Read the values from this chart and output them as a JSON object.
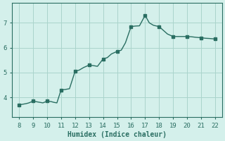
{
  "x": [
    8,
    9,
    10,
    11,
    12,
    13,
    14,
    15,
    16,
    17,
    18,
    19,
    20,
    21,
    22
  ],
  "y": [
    3.7,
    3.85,
    3.85,
    4.3,
    5.05,
    5.3,
    5.55,
    5.85,
    6.85,
    7.3,
    6.85,
    6.45,
    6.45,
    6.4,
    6.35
  ],
  "x_dense": [
    8,
    8.2,
    8.5,
    8.7,
    9,
    9.3,
    9.5,
    9.7,
    10,
    10.3,
    10.5,
    10.7,
    11,
    11.3,
    11.6,
    12,
    12.3,
    12.6,
    13,
    13.3,
    13.6,
    14,
    14.3,
    14.6,
    15,
    15.3,
    15.6,
    16,
    16.3,
    16.6,
    17,
    17.3,
    17.6,
    18,
    18.3,
    18.6,
    19,
    19.3,
    19.6,
    20,
    20.3,
    20.6,
    21,
    21.3,
    21.6,
    22
  ],
  "y_dense": [
    3.7,
    3.72,
    3.75,
    3.78,
    3.85,
    3.82,
    3.8,
    3.78,
    3.85,
    3.83,
    3.8,
    3.78,
    4.3,
    4.32,
    4.35,
    5.05,
    5.1,
    5.2,
    5.3,
    5.28,
    5.25,
    5.55,
    5.6,
    5.75,
    5.85,
    5.9,
    6.2,
    6.85,
    6.87,
    6.88,
    7.3,
    7.0,
    6.9,
    6.85,
    6.7,
    6.55,
    6.45,
    6.45,
    6.45,
    6.45,
    6.44,
    6.42,
    6.4,
    6.38,
    6.37,
    6.35
  ],
  "xlabel": "Humidex (Indice chaleur)",
  "xlim": [
    7.5,
    22.5
  ],
  "ylim": [
    3.2,
    7.8
  ],
  "yticks": [
    4,
    5,
    6,
    7
  ],
  "xticks": [
    8,
    9,
    10,
    11,
    12,
    13,
    14,
    15,
    16,
    17,
    18,
    19,
    20,
    21,
    22
  ],
  "line_color": "#2a6e62",
  "marker_color": "#2a6e62",
  "bg_color": "#d4f0eb",
  "grid_color": "#aad4cc",
  "axis_color": "#2a6e62",
  "tick_label_color": "#2a6e62",
  "marker_size": 2.5,
  "line_width": 1.0
}
